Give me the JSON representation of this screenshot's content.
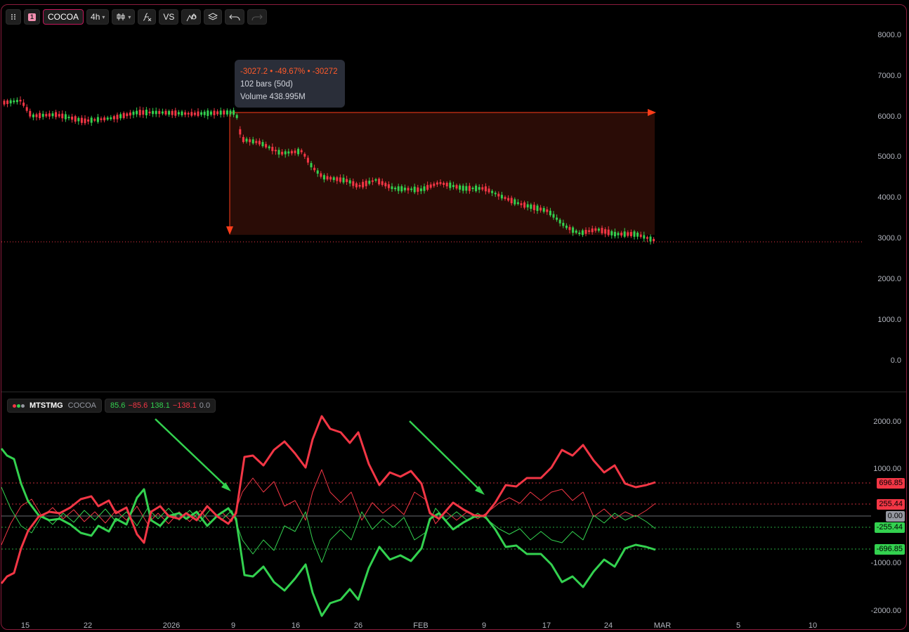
{
  "toolbar": {
    "drag_icon": "grip-icon",
    "tab_number": "1",
    "symbol": "COCOA",
    "interval": "4h",
    "buttons": [
      "candles-icon",
      "indicators-icon",
      "VS",
      "alert-icon",
      "layers-icon",
      "undo-icon",
      "redo-icon"
    ],
    "compare_label": "VS"
  },
  "measure_tooltip": {
    "line1": "-3027.2 • -49.67% • -30272",
    "line2": "102 bars (50d)",
    "line3": "Volume 438.995M",
    "color": "#ff5a2a"
  },
  "main_axis": [
    "8000.0",
    "7000.0",
    "6000.0",
    "5000.0",
    "4000.0",
    "3000.0",
    "2000.0",
    "1000.0",
    "0.0"
  ],
  "indicator": {
    "name": "MTSTMG",
    "symbol": "COCOA",
    "values": [
      {
        "text": "85.6",
        "color": "#33d14f"
      },
      {
        "text": "−85.6",
        "color": "#f23645"
      },
      {
        "text": "138.1",
        "color": "#33d14f"
      },
      {
        "text": "−138.1",
        "color": "#f23645"
      },
      {
        "text": "0.0",
        "color": "#9598a1"
      }
    ],
    "axis": [
      "2000.00",
      "1000.00",
      "-1000.00",
      "-2000.00"
    ],
    "level_tags": [
      {
        "text": "696.85",
        "color": "#f23645"
      },
      {
        "text": "255.44",
        "color": "#f23645"
      },
      {
        "text": "0.00",
        "color": "#9598a1"
      },
      {
        "text": "-255.44",
        "color": "#33d14f"
      },
      {
        "text": "-696.85",
        "color": "#33d14f"
      }
    ]
  },
  "time_axis": [
    "15",
    "22",
    "2026",
    "9",
    "16",
    "26",
    "FEB",
    "9",
    "17",
    "24",
    "MAR",
    "5",
    "10"
  ],
  "colors": {
    "up": "#33d14f",
    "down": "#f23645",
    "border": "#8a1c3c",
    "measure": "#ff3d1a"
  }
}
